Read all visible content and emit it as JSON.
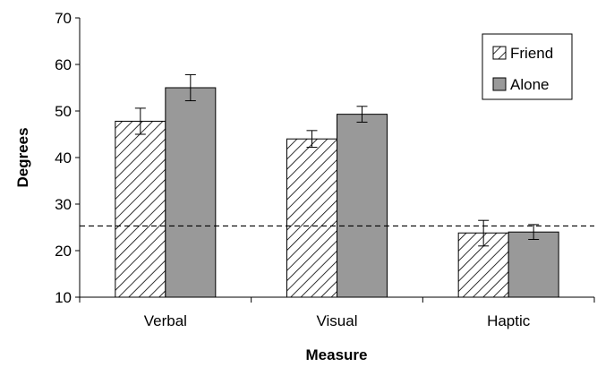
{
  "chart_data": {
    "type": "bar",
    "title": "",
    "xlabel": "Measure",
    "ylabel": "Degrees",
    "categories": [
      "Verbal",
      "Visual",
      "Haptic"
    ],
    "series": [
      {
        "name": "Friend",
        "pattern": "diagonal-hatch",
        "fill": "#ffffff",
        "stroke": "#000000",
        "values": [
          47.8,
          44.0,
          23.8
        ],
        "error_low": [
          45.0,
          42.2,
          21.0
        ],
        "error_high": [
          50.6,
          45.8,
          26.5
        ]
      },
      {
        "name": "Alone",
        "pattern": "solid",
        "fill": "#999999",
        "stroke": "#000000",
        "values": [
          55.0,
          49.3,
          24.0
        ],
        "error_low": [
          52.2,
          47.6,
          22.4
        ],
        "error_high": [
          57.8,
          51.0,
          25.6
        ]
      }
    ],
    "ylim": [
      10,
      70
    ],
    "yticks": [
      10,
      20,
      30,
      40,
      50,
      60,
      70
    ],
    "reference_line": {
      "value": 25.3,
      "style": "dashed"
    },
    "legend": {
      "position": "top-right"
    },
    "grid": false
  }
}
